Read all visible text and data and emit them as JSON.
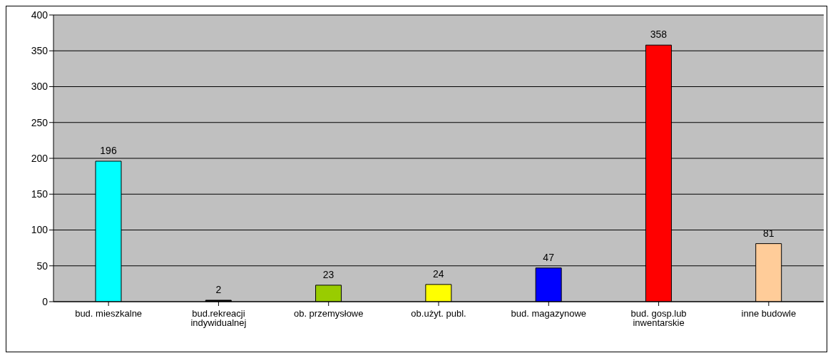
{
  "chart_data": {
    "type": "bar",
    "categories": [
      "bud. mieszkalne",
      "bud.rekreacji indywidualnej",
      "ob. przemysłowe",
      "ob.użyt. publ.",
      "bud. magazynowe",
      "bud. gosp.lub inwentarskie",
      "inne budowle"
    ],
    "values": [
      196,
      2,
      23,
      24,
      47,
      358,
      81
    ],
    "colors": [
      "#00ffff",
      "#000000",
      "#99cc00",
      "#ffff00",
      "#0000ff",
      "#ff0000",
      "#ffcc99"
    ],
    "ylim": [
      0,
      400
    ],
    "yticks": [
      0,
      50,
      100,
      150,
      200,
      250,
      300,
      350,
      400
    ],
    "grid": "y",
    "data_labels": true
  }
}
